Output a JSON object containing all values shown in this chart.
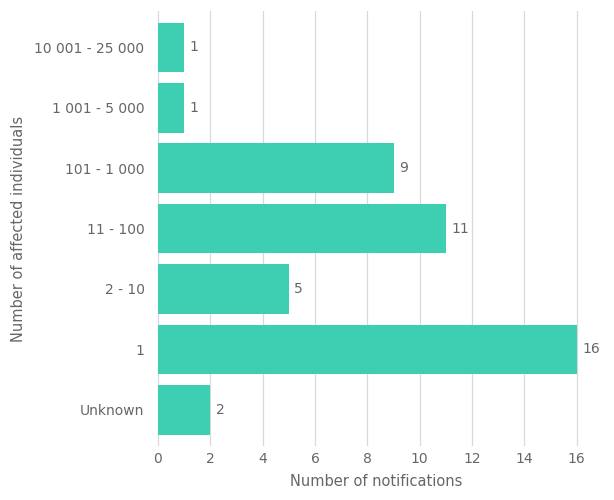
{
  "categories": [
    "Unknown",
    "1",
    "2 - 10",
    "11 - 100",
    "101 - 1 000",
    "1 001 - 5 000",
    "10 001 - 25 000"
  ],
  "values": [
    2,
    16,
    5,
    11,
    9,
    1,
    1
  ],
  "bar_color": "#3ECFB2",
  "xlabel": "Number of notifications",
  "ylabel": "Number of affected individuals",
  "xlim": [
    0,
    17
  ],
  "xticks": [
    0,
    2,
    4,
    6,
    8,
    10,
    12,
    14,
    16
  ],
  "background_color": "#ffffff",
  "grid_color": "#d9d9d9",
  "label_fontsize": 10.5,
  "tick_fontsize": 10,
  "value_fontsize": 10,
  "bar_height": 0.82
}
